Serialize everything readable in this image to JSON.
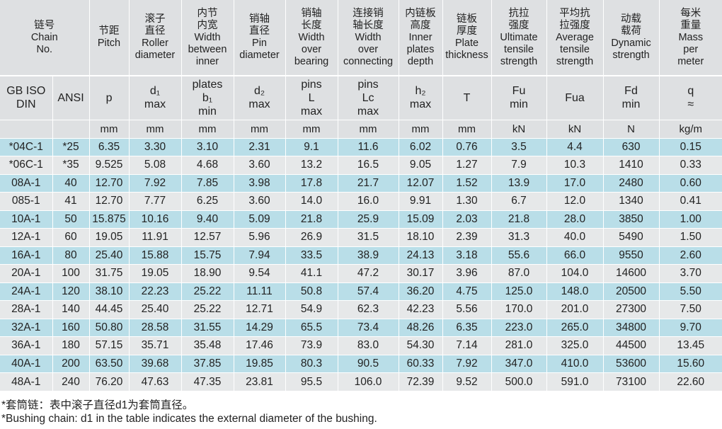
{
  "header": [
    [
      "链号",
      "Chain",
      "No."
    ],
    [
      "节距",
      "Pitch"
    ],
    [
      "滚子",
      "直径",
      "Roller",
      "diameter"
    ],
    [
      "内节",
      "内宽",
      "Width",
      "between",
      "inner"
    ],
    [
      "销轴",
      "直径",
      "Pin",
      "diameter"
    ],
    [
      "销轴",
      "长度",
      "Width",
      "over",
      "bearing"
    ],
    [
      "连接销",
      "轴长度",
      "Width",
      "over",
      "connecting"
    ],
    [
      "内链板",
      "高度",
      "Inner",
      "plates",
      "depth"
    ],
    [
      "链板",
      "厚度",
      "Plate",
      "thickness"
    ],
    [
      "抗拉",
      "强度",
      "Ultimate",
      "tensile",
      "strength"
    ],
    [
      "平均抗",
      "拉强度",
      "Average",
      "tensile",
      "strength"
    ],
    [
      "动载",
      "载荷",
      "Dynamic",
      "strength"
    ],
    [
      "每米",
      "重量",
      "Mass",
      "per",
      "meter"
    ]
  ],
  "subheader": [
    [
      "GB ISO",
      "DIN"
    ],
    [
      "ANSI"
    ],
    [
      "p"
    ],
    [
      "d₁",
      "max"
    ],
    [
      "plates",
      "b₁",
      "min"
    ],
    [
      "d₂",
      "max"
    ],
    [
      "pins",
      "L",
      "max"
    ],
    [
      "pins",
      "Lc",
      "max"
    ],
    [
      "h₂",
      "max"
    ],
    [
      "T"
    ],
    [
      "Fu",
      "min"
    ],
    [
      "Fua"
    ],
    [
      "Fd",
      "min"
    ],
    [
      "q",
      "≈"
    ]
  ],
  "units": [
    "",
    "",
    "mm",
    "mm",
    "mm",
    "mm",
    "mm",
    "mm",
    "mm",
    "mm",
    "kN",
    "kN",
    "N",
    "kg/m"
  ],
  "rows": [
    [
      "*04C-1",
      "*25",
      "6.35",
      "3.30",
      "3.10",
      "2.31",
      "9.1",
      "11.6",
      "6.02",
      "0.76",
      "3.5",
      "4.4",
      "630",
      "0.15"
    ],
    [
      "*06C-1",
      "*35",
      "9.525",
      "5.08",
      "4.68",
      "3.60",
      "13.2",
      "16.5",
      "9.05",
      "1.27",
      "7.9",
      "10.3",
      "1410",
      "0.33"
    ],
    [
      "08A-1",
      "40",
      "12.70",
      "7.92",
      "7.85",
      "3.98",
      "17.8",
      "21.7",
      "12.07",
      "1.52",
      "13.9",
      "17.0",
      "2480",
      "0.60"
    ],
    [
      "085-1",
      "41",
      "12.70",
      "7.77",
      "6.25",
      "3.60",
      "14.0",
      "16.0",
      "9.91",
      "1.30",
      "6.7",
      "12.0",
      "1340",
      "0.41"
    ],
    [
      "10A-1",
      "50",
      "15.875",
      "10.16",
      "9.40",
      "5.09",
      "21.8",
      "25.9",
      "15.09",
      "2.03",
      "21.8",
      "28.0",
      "3850",
      "1.00"
    ],
    [
      "12A-1",
      "60",
      "19.05",
      "11.91",
      "12.57",
      "5.96",
      "26.9",
      "31.5",
      "18.10",
      "2.39",
      "31.3",
      "40.0",
      "5490",
      "1.50"
    ],
    [
      "16A-1",
      "80",
      "25.40",
      "15.88",
      "15.75",
      "7.94",
      "33.5",
      "38.9",
      "24.13",
      "3.18",
      "55.6",
      "66.0",
      "9550",
      "2.60"
    ],
    [
      "20A-1",
      "100",
      "31.75",
      "19.05",
      "18.90",
      "9.54",
      "41.1",
      "47.2",
      "30.17",
      "3.96",
      "87.0",
      "104.0",
      "14600",
      "3.70"
    ],
    [
      "24A-1",
      "120",
      "38.10",
      "22.23",
      "25.22",
      "11.11",
      "50.8",
      "57.4",
      "36.20",
      "4.75",
      "125.0",
      "148.0",
      "20500",
      "5.50"
    ],
    [
      "28A-1",
      "140",
      "44.45",
      "25.40",
      "25.22",
      "12.71",
      "54.9",
      "62.3",
      "42.23",
      "5.56",
      "170.0",
      "201.0",
      "27300",
      "7.50"
    ],
    [
      "32A-1",
      "160",
      "50.80",
      "28.58",
      "31.55",
      "14.29",
      "65.5",
      "73.4",
      "48.26",
      "6.35",
      "223.0",
      "265.0",
      "34800",
      "9.70"
    ],
    [
      "36A-1",
      "180",
      "57.15",
      "35.71",
      "35.48",
      "17.46",
      "73.9",
      "83.0",
      "54.30",
      "7.14",
      "281.0",
      "325.0",
      "44500",
      "13.45"
    ],
    [
      "40A-1",
      "200",
      "63.50",
      "39.68",
      "37.85",
      "19.85",
      "80.3",
      "90.5",
      "60.33",
      "7.92",
      "347.0",
      "410.0",
      "53600",
      "15.60"
    ],
    [
      "48A-1",
      "240",
      "76.20",
      "47.63",
      "47.35",
      "23.81",
      "95.5",
      "106.0",
      "72.39",
      "9.52",
      "500.0",
      "591.0",
      "73100",
      "22.60"
    ]
  ],
  "footnotes": {
    "cn": "*套筒链：表中滚子直径d1为套筒直径。",
    "en": "*Bushing chain: d1 in the table indicates the external diameter of the bushing."
  },
  "colors": {
    "header_bg": "#dee0e2",
    "row_blue": "#b9dee8",
    "row_grey": "#e6e8e9"
  }
}
